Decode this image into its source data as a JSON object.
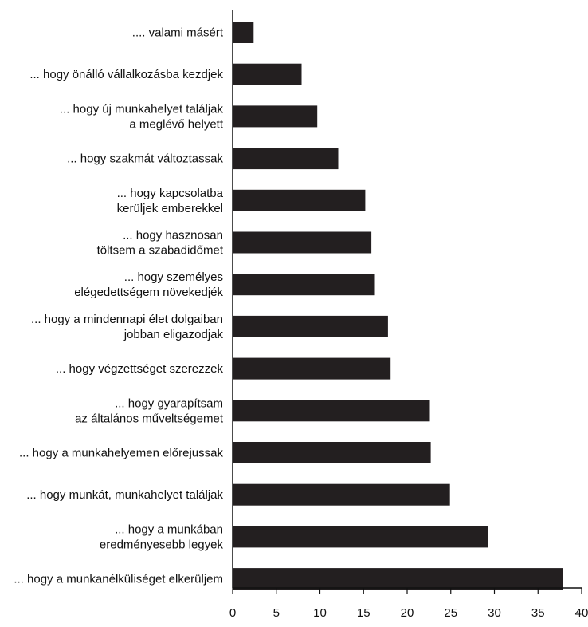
{
  "chart_data": {
    "type": "bar",
    "orientation": "horizontal",
    "categories": [
      ".... valami másért",
      "... hogy önálló vállalkozásba kezdjek",
      "... hogy új munkahelyet találjak\na meglévő helyett",
      "... hogy szakmát változtassak",
      "... hogy kapcsolatba\nkerüljek emberekkel",
      "... hogy hasznosan\ntöltsem a szabadidőmet",
      "... hogy személyes\nelégedettségem növekedjék",
      "... hogy a mindennapi élet dolgaiban\njobban eligazodjak",
      "... hogy végzettséget szerezzek",
      "... hogy gyarapítsam\naz általános műveltségemet",
      "... hogy a munkahelyemen előrejussak",
      "... hogy munkát, munkahelyet találjak",
      "... hogy a munkában\neredményesebb legyek",
      "... hogy a munkanélküliséget elkerüljem"
    ],
    "values": [
      2.4,
      7.9,
      9.7,
      12.1,
      15.2,
      15.9,
      16.3,
      17.8,
      18.1,
      22.6,
      22.7,
      24.9,
      29.3,
      37.9
    ],
    "xlim": [
      0,
      40
    ],
    "xticks": [
      0,
      5,
      10,
      15,
      20,
      25,
      30,
      35,
      40
    ],
    "title": "",
    "xlabel": "",
    "ylabel": "",
    "grid": false,
    "bar_color": "#231f20"
  }
}
